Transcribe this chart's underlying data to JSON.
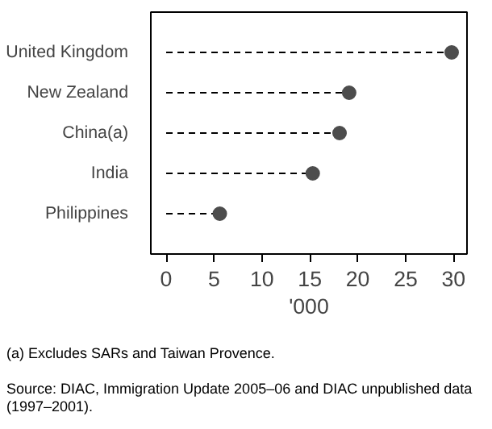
{
  "chart_data": {
    "type": "lollipop",
    "orientation": "horizontal",
    "categories": [
      "United Kingdom",
      "New Zealand",
      "China(a)",
      "India",
      "Philippines"
    ],
    "values": [
      29.8,
      19.1,
      18.1,
      15.3,
      5.6
    ],
    "color": "#4d4d4d",
    "line_style": "dashed",
    "marker": "circle",
    "xlim": [
      -1.6,
      31.4
    ],
    "xticks": [
      0,
      5,
      10,
      15,
      20,
      25,
      30
    ],
    "xlabel": "'000",
    "annotations": [
      "(a) Excludes SARs and Taiwan Provence.",
      "Source: DIAC, Immigration Update 2005–06 and DIAC unpublished data (1997–2001)."
    ]
  }
}
